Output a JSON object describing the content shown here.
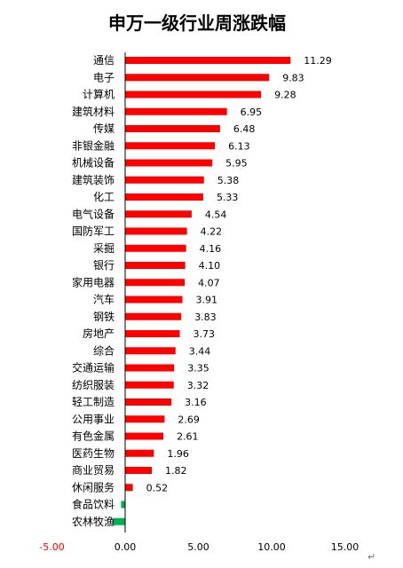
{
  "chart_data": {
    "type": "bar",
    "orientation": "horizontal",
    "title": "申万一级行业周涨跌幅",
    "categories": [
      "通信",
      "电子",
      "计算机",
      "建筑材料",
      "传媒",
      "非银金融",
      "机械设备",
      "建筑装饰",
      "化工",
      "电气设备",
      "国防军工",
      "采掘",
      "银行",
      "家用电器",
      "汽车",
      "钢铁",
      "房地产",
      "综合",
      "交通运输",
      "纺织服装",
      "轻工制造",
      "公用事业",
      "有色金属",
      "医药生物",
      "商业贸易",
      "休闲服务",
      "食品饮料",
      "农林牧渔"
    ],
    "values": [
      11.29,
      9.83,
      9.28,
      6.95,
      6.48,
      6.13,
      5.95,
      5.38,
      5.33,
      4.54,
      4.22,
      4.16,
      4.1,
      4.07,
      3.91,
      3.83,
      3.73,
      3.44,
      3.35,
      3.32,
      3.16,
      2.69,
      2.61,
      1.96,
      1.82,
      0.52,
      -0.28,
      -0.87
    ],
    "value_labels": [
      "11.29",
      "9.83",
      "9.28",
      "6.95",
      "6.48",
      "6.13",
      "5.95",
      "5.38",
      "5.33",
      "4.54",
      "4.22",
      "4.16",
      "4.10",
      "4.07",
      "3.91",
      "3.83",
      "3.73",
      "3.44",
      "3.35",
      "3.32",
      "3.16",
      "2.69",
      "2.61",
      "1.96",
      "1.82",
      "0.52",
      "",
      ""
    ],
    "xlim": [
      -5,
      15
    ],
    "xticks": [
      "-5.00",
      "0.00",
      "5.00",
      "10.00",
      "15.00"
    ],
    "grid": false,
    "colors": {
      "positive": "#ff0000",
      "negative": "#00b050",
      "negative_tick": "#ff0000"
    }
  },
  "return_mark": "↵"
}
